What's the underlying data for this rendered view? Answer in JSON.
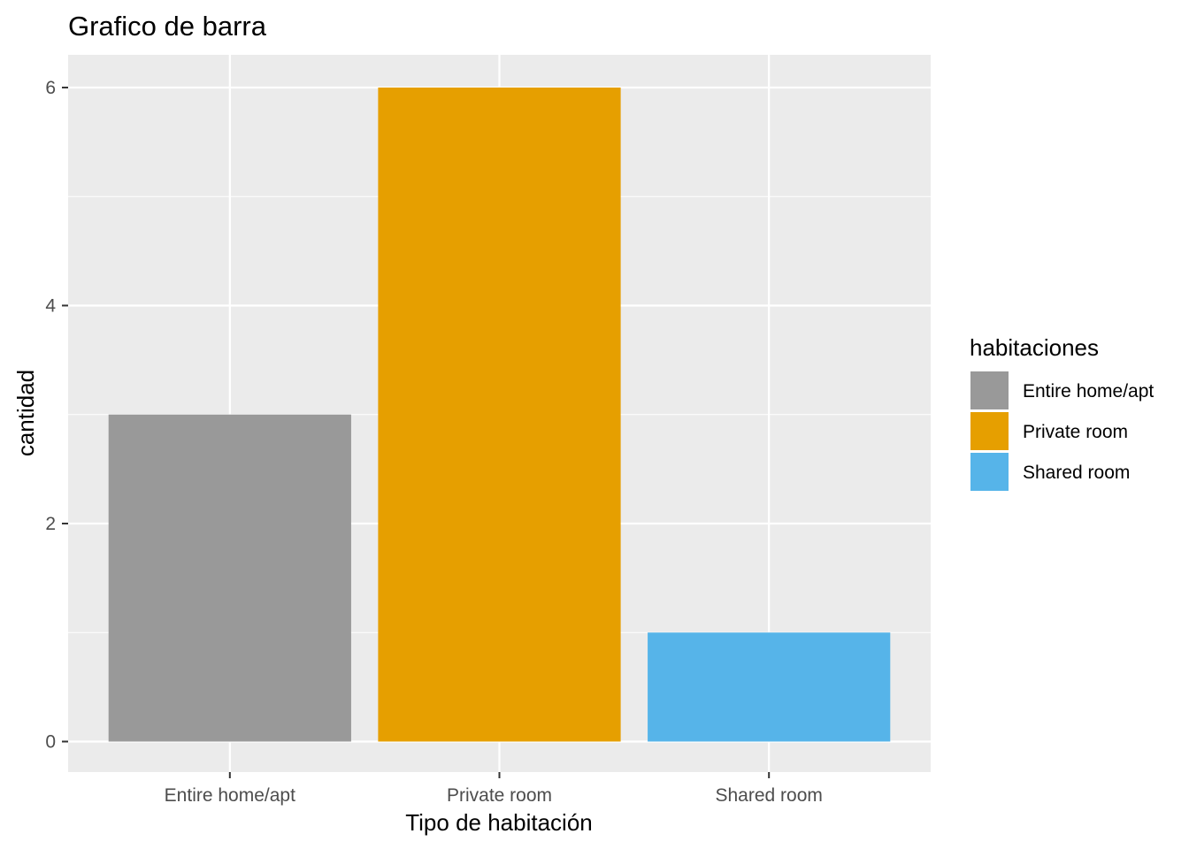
{
  "chart_data": {
    "type": "bar",
    "title": "Grafico de barra",
    "xlabel": "Tipo de habitación",
    "ylabel": "cantidad",
    "categories": [
      "Entire home/apt",
      "Private room",
      "Shared room"
    ],
    "values": [
      3,
      6,
      1
    ],
    "colors": [
      "#999999",
      "#E69F00",
      "#56B4E9"
    ],
    "ylim": [
      -0.28,
      6.3
    ],
    "yticks": [
      0,
      2,
      4,
      6
    ],
    "ytick_labels": [
      "0",
      "2",
      "4",
      "6"
    ],
    "grid": true,
    "panel_background": "#EBEBEB",
    "legend": {
      "title": "habitaciones",
      "position": "right",
      "entries": [
        "Entire home/apt",
        "Private room",
        "Shared room"
      ]
    }
  }
}
